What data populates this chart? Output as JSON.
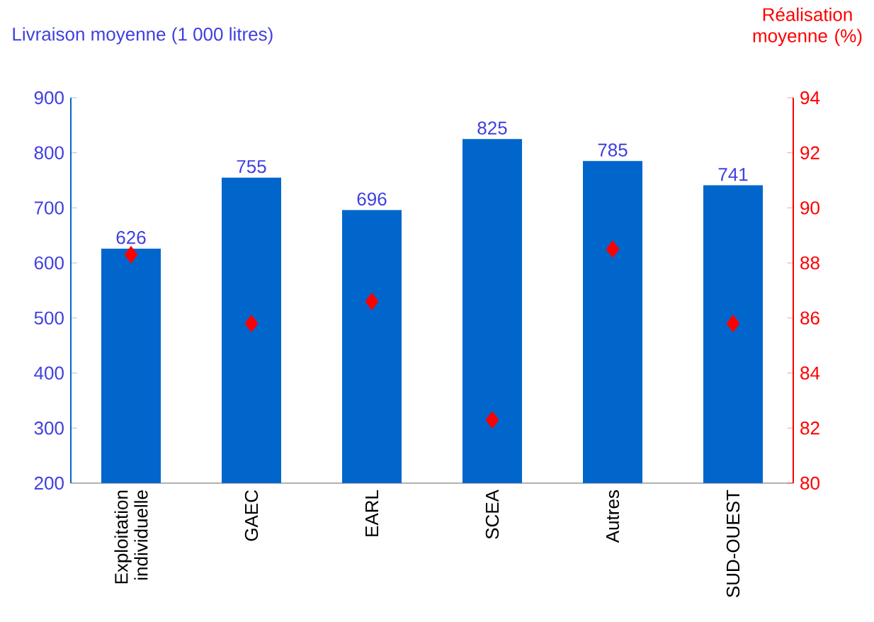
{
  "chart_data": {
    "type": "bar",
    "ylabel": "Livraison moyenne (1 000 litres)",
    "y2label": "Réalisation moyenne (%)",
    "categories": [
      "Exploitation individuelle",
      "GAEC",
      "EARL",
      "SCEA",
      "Autres",
      "SUD-OUEST"
    ],
    "series": [
      {
        "color": "#0066cc",
        "values": [
          626,
          755,
          696,
          825,
          785,
          741
        ],
        "value_labels": [
          "626",
          "755",
          "696",
          "825",
          "785",
          "741"
        ]
      },
      {
        "type": "scatter",
        "axis": "y2",
        "color": "#ff0000",
        "marker": "diamond",
        "values": [
          88.3,
          85.8,
          86.6,
          82.3,
          88.5,
          85.8
        ]
      }
    ],
    "ylim": [
      200,
      900
    ],
    "yticks": [
      200,
      300,
      400,
      500,
      600,
      700,
      800,
      900
    ],
    "y2lim": [
      80,
      94
    ],
    "y2ticks": [
      80,
      82,
      84,
      86,
      88,
      90,
      92,
      94
    ]
  }
}
